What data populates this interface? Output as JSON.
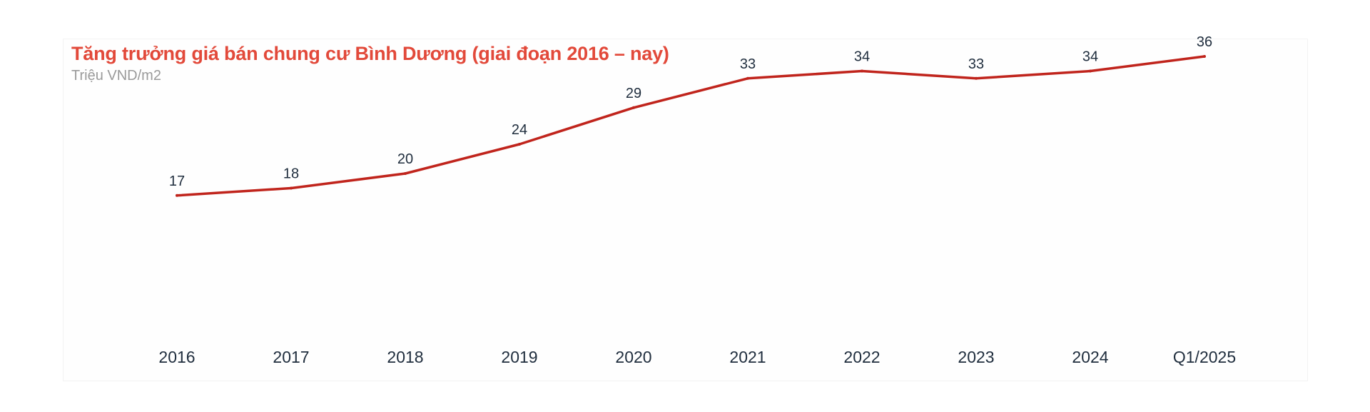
{
  "chart_data": {
    "type": "line",
    "title": "Tăng trưởng giá bán chung cư Bình Dương (giai đoạn 2016 – nay)",
    "subtitle": "Triệu VND/m2",
    "categories": [
      "2016",
      "2017",
      "2018",
      "2019",
      "2020",
      "2021",
      "2022",
      "2023",
      "2024",
      "Q1/2025"
    ],
    "series": [
      {
        "values": [
          17,
          18,
          20,
          24,
          29,
          33,
          34,
          33,
          34,
          36
        ]
      }
    ],
    "data_labels": [
      "17",
      "18",
      "20",
      "24",
      "29",
      "33",
      "34",
      "33",
      "34",
      "36"
    ],
    "ylim": [
      0,
      40
    ],
    "grid": false,
    "legend": "none",
    "line_color": "#c0241c",
    "title_color": "#e2493a"
  }
}
